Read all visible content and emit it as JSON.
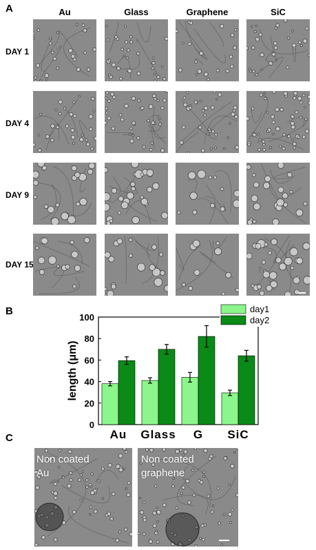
{
  "panel_a": {
    "letter": "A",
    "columns": [
      "Au",
      "Glass",
      "Graphene",
      "SiC"
    ],
    "rows": [
      "DAY 1",
      "DAY 4",
      "DAY 9",
      "DAY 15"
    ]
  },
  "panel_b": {
    "letter": "B"
  },
  "panel_c": {
    "letter": "C",
    "images": [
      {
        "line1": "Non coated",
        "line2": "Au"
      },
      {
        "line1": "Non coated",
        "line2": "graphene"
      }
    ]
  },
  "colors": {
    "day1": "#8cf58c",
    "day2": "#0a8a16",
    "micro_bg": "#8a8a8a"
  },
  "chart_data": {
    "type": "bar",
    "categories": [
      "Au",
      "Glass",
      "G",
      "SiC"
    ],
    "series": [
      {
        "name": "day1",
        "values": [
          38,
          41,
          44,
          29.5
        ],
        "errors": [
          2,
          2.5,
          4.5,
          2.5
        ]
      },
      {
        "name": "day2",
        "values": [
          59.5,
          70,
          82,
          64
        ],
        "errors": [
          3.5,
          4.5,
          10,
          5
        ]
      }
    ],
    "ylabel": "length (μm)",
    "ylim": [
      0,
      100
    ],
    "yticks": [
      0,
      20,
      40,
      60,
      80,
      100
    ],
    "legend": "top-right",
    "grid": false
  }
}
